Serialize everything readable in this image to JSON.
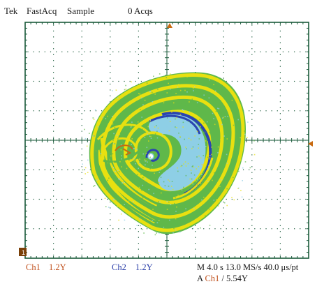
{
  "header": {
    "brand": "Tek",
    "mode": "FastAcq",
    "acq_mode": "Sample",
    "acq_count": "0 Acqs"
  },
  "footer": {
    "ch1_label": "Ch1",
    "ch1_scale": "1.2Y",
    "ch2_label": "Ch2",
    "ch2_scale": "1.2Y",
    "timebase": "M 4.0 s 13.0 MS/s  40.0 μs/pt",
    "trigger_prefix": "A",
    "trigger_channel": "Ch1",
    "trigger_level": "/ 5.54Y"
  },
  "markers": {
    "ground_marker": "1"
  },
  "colors": {
    "grid": "#1a5a3a",
    "trace_yellow": "#e8e010",
    "trace_green": "#5fb84a",
    "trace_cyan": "#8ecfe6",
    "trace_blue": "#2a44b0",
    "ch1": "#c0501c",
    "ch2": "#2a3ea8",
    "marker": "#c86a10"
  }
}
